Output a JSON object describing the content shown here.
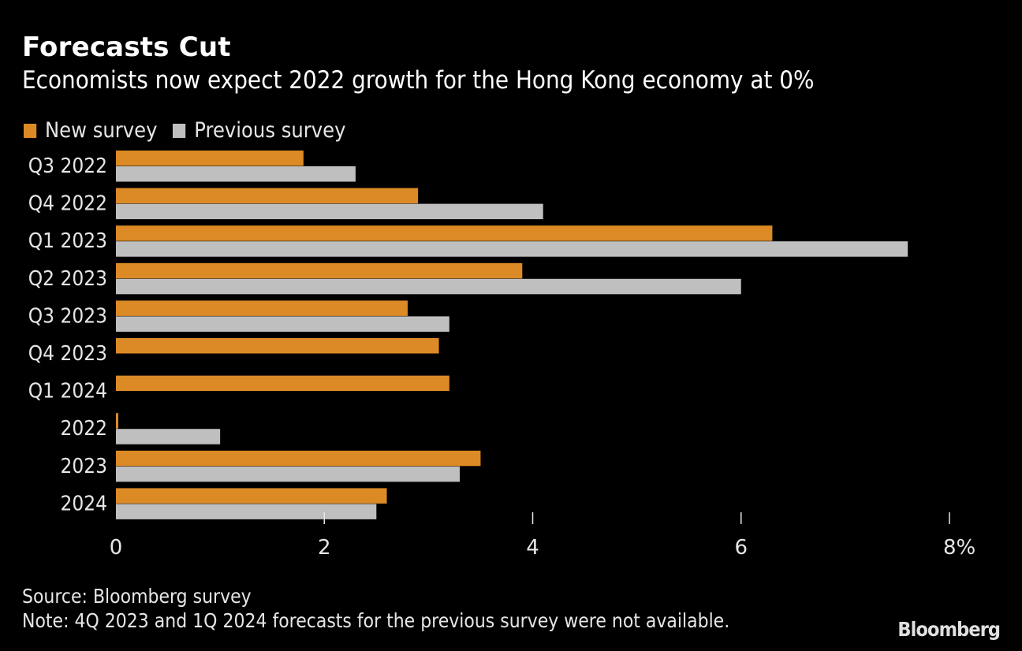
{
  "header": {
    "title": "Forecasts Cut",
    "subtitle": "Economists now expect 2022 growth for the Hong Kong economy at 0%"
  },
  "footer": {
    "source": "Source: Bloomberg survey",
    "note": "Note: 4Q 2023 and 1Q 2024 forecasts for the previous survey were not available.",
    "logo": "Bloomberg"
  },
  "chart_data": {
    "type": "bar",
    "orientation": "horizontal",
    "title": "Forecasts Cut",
    "subtitle": "Economists now expect 2022 growth for the Hong Kong economy at 0%",
    "xlabel": "",
    "ylabel": "",
    "xlim": [
      0,
      8
    ],
    "x_ticks": [
      0,
      2,
      4,
      6,
      8
    ],
    "x_tick_labels": [
      "0",
      "2",
      "4",
      "6",
      "8%"
    ],
    "grid": false,
    "legend_position": "top-left",
    "categories": [
      "Q3 2022",
      "Q4 2022",
      "Q1 2023",
      "Q2 2023",
      "Q3 2023",
      "Q4 2023",
      "Q1 2024",
      "2022",
      "2023",
      "2024"
    ],
    "series": [
      {
        "name": "New survey",
        "color": "#DC8A26",
        "values": [
          1.8,
          2.9,
          6.3,
          3.9,
          2.8,
          3.1,
          3.2,
          0.0,
          3.5,
          2.6
        ]
      },
      {
        "name": "Previous survey",
        "color": "#BFBFBF",
        "values": [
          2.3,
          4.1,
          7.6,
          6.0,
          3.2,
          null,
          null,
          1.0,
          3.3,
          2.5
        ]
      }
    ]
  }
}
